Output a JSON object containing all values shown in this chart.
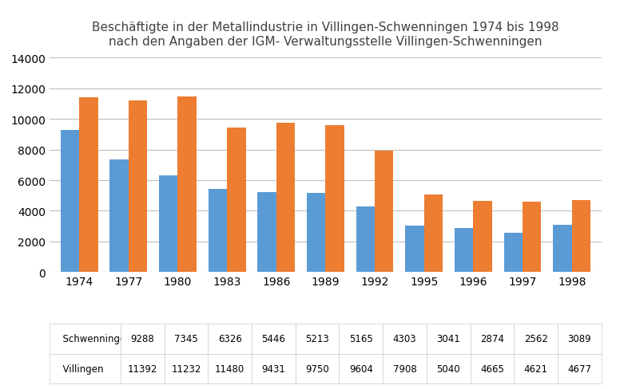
{
  "title_line1": "Beschäftigte in der Metallindustrie in Villingen-Schwenningen 1974 bis 1998",
  "title_line2": "nach den Angaben der IGM- Verwaltungsstelle Villingen-Schwenningen",
  "years": [
    1974,
    1977,
    1980,
    1983,
    1986,
    1989,
    1992,
    1995,
    1996,
    1997,
    1998
  ],
  "schwenningen": [
    9288,
    7345,
    6326,
    5446,
    5213,
    5165,
    4303,
    3041,
    2874,
    2562,
    3089
  ],
  "villingen": [
    11392,
    11232,
    11480,
    9431,
    9750,
    9604,
    7908,
    5040,
    4665,
    4621,
    4677
  ],
  "color_schwenningen": "#5B9BD5",
  "color_villingen": "#ED7D31",
  "ylim": [
    0,
    14000
  ],
  "yticks": [
    0,
    2000,
    4000,
    6000,
    8000,
    10000,
    12000,
    14000
  ],
  "legend_label_schwenningen": "Schwenningen",
  "legend_label_villingen": "Villingen",
  "table_row1_label": "Schwenningen",
  "table_row2_label": "Villingen",
  "background_color": "#FFFFFF",
  "grid_color": "#C0C0C0",
  "bar_width": 0.38
}
